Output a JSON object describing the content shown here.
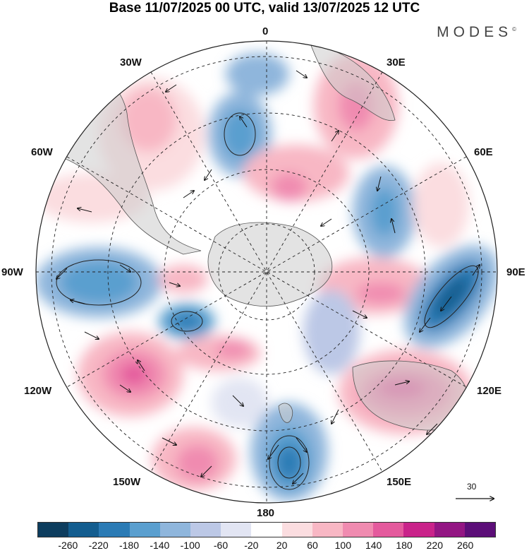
{
  "title": "Base 11/07/2025 00 UTC, valid 13/07/2025 12 UTC",
  "brand": "MODES",
  "brand_mark": "©",
  "longitude_labels": {
    "n": "0",
    "s": "180",
    "e": "90E",
    "w": "90W",
    "ne1": "30E",
    "ne2": "60E",
    "se1": "120E",
    "se2": "150E",
    "nw1": "30W",
    "nw2": "60W",
    "sw1": "120W",
    "sw2": "150W"
  },
  "reference_vector": "30",
  "colorbar": {
    "colors": [
      "#0d3d5e",
      "#135d8f",
      "#2b7bb5",
      "#5a9fcf",
      "#8fb6dc",
      "#bcc8e6",
      "#e2e5f3",
      "#ffffff",
      "#fbdde0",
      "#f8b7c4",
      "#f08bb0",
      "#e45a9d",
      "#c9238a",
      "#931683",
      "#5c0e78"
    ],
    "ticks": [
      "-260",
      "-220",
      "-180",
      "-140",
      "-100",
      "-60",
      "-20",
      "20",
      "60",
      "100",
      "140",
      "180",
      "220",
      "260"
    ]
  }
}
